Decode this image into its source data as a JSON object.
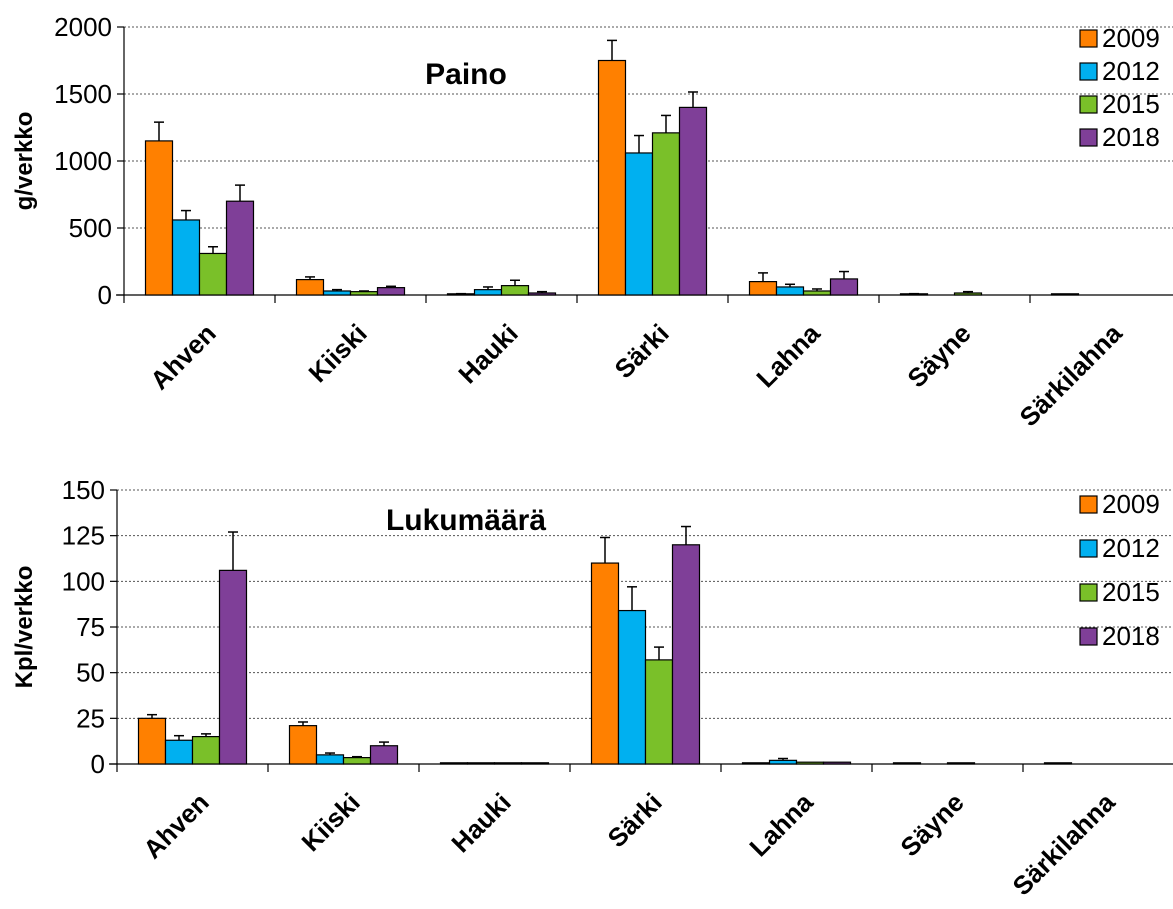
{
  "chart_data": [
    {
      "type": "bar",
      "title": "Paino",
      "xlabel": "",
      "ylabel": "g/verkko",
      "ylim": [
        0,
        2000
      ],
      "yticks": [
        0,
        500,
        1000,
        1500,
        2000
      ],
      "ytick_labels": [
        "0",
        "500",
        "1000",
        "1500",
        "2000"
      ],
      "grid": true,
      "legend_position": "top-right",
      "categories": [
        "Ahven",
        "Kiiski",
        "Hauki",
        "Särki",
        "Lahna",
        "Säyne",
        "Särkilahna"
      ],
      "series": [
        {
          "name": "2009",
          "color": "#FF8000",
          "values": [
            1150,
            115,
            5,
            1750,
            100,
            5,
            3
          ],
          "errors": [
            140,
            20,
            5,
            150,
            65,
            5,
            3
          ]
        },
        {
          "name": "2012",
          "color": "#00B0F0",
          "values": [
            560,
            30,
            40,
            1060,
            60,
            0,
            0
          ],
          "errors": [
            70,
            10,
            20,
            130,
            20,
            0,
            0
          ]
        },
        {
          "name": "2015",
          "color": "#7AC029",
          "values": [
            310,
            25,
            70,
            1210,
            30,
            15,
            0
          ],
          "errors": [
            50,
            5,
            40,
            130,
            15,
            10,
            0
          ]
        },
        {
          "name": "2018",
          "color": "#7F3F98",
          "values": [
            700,
            55,
            15,
            1400,
            120,
            0,
            0
          ],
          "errors": [
            120,
            10,
            10,
            115,
            55,
            0,
            0
          ]
        }
      ]
    },
    {
      "type": "bar",
      "title": "Lukumäärä",
      "xlabel": "",
      "ylabel": "Kpl/verkko",
      "ylim": [
        0,
        150
      ],
      "yticks": [
        0,
        25,
        50,
        75,
        100,
        125,
        150
      ],
      "ytick_labels": [
        "0",
        "25",
        "50",
        "75",
        "100",
        "125",
        "150"
      ],
      "grid": true,
      "legend_position": "top-right",
      "categories": [
        "Ahven",
        "Kiiski",
        "Hauki",
        "Särki",
        "Lahna",
        "Säyne",
        "Särkilahna"
      ],
      "series": [
        {
          "name": "2009",
          "color": "#FF8000",
          "values": [
            25,
            21,
            0.3,
            110,
            0.5,
            0.2,
            0.2
          ],
          "errors": [
            2,
            2,
            0,
            14,
            0,
            0,
            0
          ]
        },
        {
          "name": "2012",
          "color": "#00B0F0",
          "values": [
            13,
            5,
            0.3,
            84,
            2,
            0,
            0
          ],
          "errors": [
            2.5,
            1,
            0,
            13,
            1,
            0,
            0
          ]
        },
        {
          "name": "2015",
          "color": "#7AC029",
          "values": [
            15,
            3.5,
            0.3,
            57,
            1,
            0.2,
            0
          ],
          "errors": [
            1.5,
            0.5,
            0,
            7,
            0,
            0,
            0
          ]
        },
        {
          "name": "2018",
          "color": "#7F3F98",
          "values": [
            106,
            10,
            0.3,
            120,
            1,
            0,
            0
          ],
          "errors": [
            21,
            2,
            0,
            10,
            0,
            0,
            0
          ]
        }
      ]
    }
  ]
}
